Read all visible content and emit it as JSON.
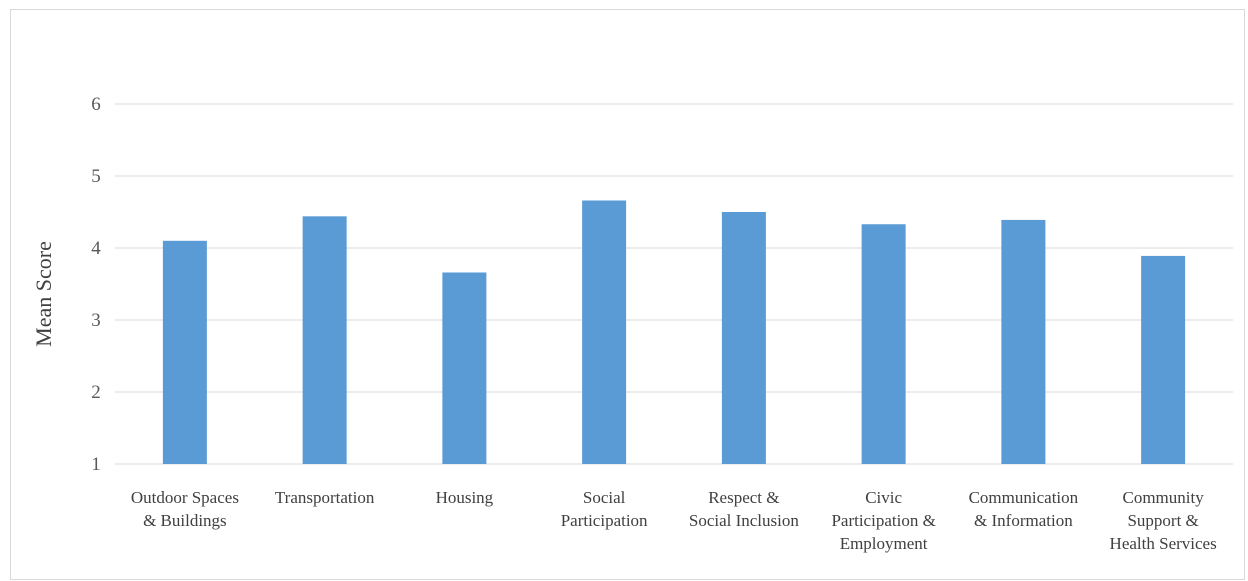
{
  "chart_data": {
    "type": "bar",
    "title": "",
    "xlabel": "",
    "ylabel": "Mean Score",
    "ylim": [
      1,
      6
    ],
    "yticks": [
      1,
      2,
      3,
      4,
      5,
      6
    ],
    "grid": true,
    "bar_color": "#5b9bd5",
    "categories": [
      [
        "Outdoor Spaces",
        "& Buildings"
      ],
      [
        "Transportation"
      ],
      [
        "Housing"
      ],
      [
        "Social",
        "Participation"
      ],
      [
        "Respect &",
        "Social Inclusion"
      ],
      [
        "Civic",
        "Participation &",
        "Employment"
      ],
      [
        "Communication",
        "& Information"
      ],
      [
        "Community",
        "Support &",
        "Health Services"
      ]
    ],
    "values": [
      4.1,
      4.44,
      3.66,
      4.66,
      4.5,
      4.33,
      4.39,
      3.89
    ]
  }
}
